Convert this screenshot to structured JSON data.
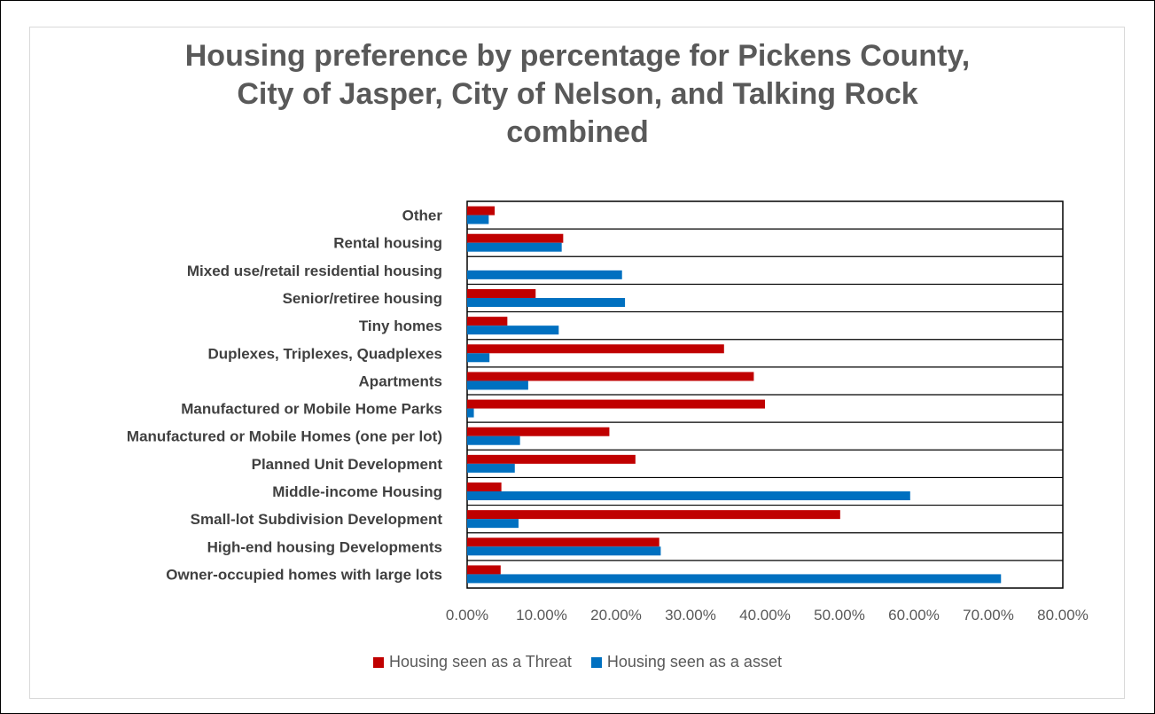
{
  "chart_data": {
    "type": "bar",
    "orientation": "horizontal",
    "title": [
      "Housing preference by percentage for Pickens County,",
      "City of Jasper, City of Nelson, and Talking Rock",
      "combined"
    ],
    "categories": [
      "Other",
      "Rental housing",
      "Mixed use/retail residential housing",
      "Senior/retiree housing",
      "Tiny homes",
      "Duplexes, Triplexes, Quadplexes",
      "Apartments",
      "Manufactured or Mobile Home Parks",
      "Manufactured or Mobile Homes (one per lot)",
      "Planned Unit Development",
      "Middle-income Housing",
      "Small-lot Subdivision Development",
      "High-end housing Developments",
      "Owner-occupied homes with large lots"
    ],
    "series": [
      {
        "name": "Housing seen as a Threat",
        "color": "#c00000",
        "values": [
          3.7,
          12.9,
          0,
          9.2,
          5.4,
          34.5,
          38.5,
          40.0,
          19.1,
          22.6,
          4.6,
          50.1,
          25.8,
          4.5
        ]
      },
      {
        "name": "Housing seen as a asset",
        "color": "#0070c0",
        "values": [
          2.9,
          12.7,
          20.8,
          21.2,
          12.3,
          3.0,
          8.2,
          0.9,
          7.1,
          6.4,
          59.5,
          6.9,
          26.0,
          71.7
        ]
      }
    ],
    "xlim": [
      0,
      80
    ],
    "xticks": [
      "0.00%",
      "10.00%",
      "20.00%",
      "30.00%",
      "40.00%",
      "50.00%",
      "60.00%",
      "70.00%",
      "80.00%"
    ],
    "grid": "horizontal category separators",
    "legend_position": "bottom"
  }
}
